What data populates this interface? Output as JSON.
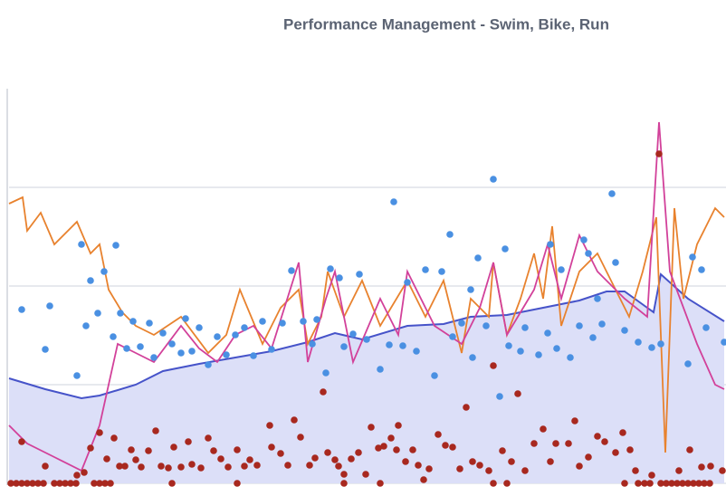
{
  "chart_data": {
    "type": "combo",
    "title": "Performance Management - Swim, Bike, Run",
    "xlim": [
      0,
      792
    ],
    "ylim": [
      0,
      436
    ],
    "yticks": [
      0,
      109,
      218,
      327
    ],
    "grid": true,
    "series": [
      {
        "type": "area",
        "color": "#4653c9",
        "fill": "#dcdff8",
        "x": [
          0,
          40,
          80,
          100,
          140,
          170,
          210,
          250,
          290,
          330,
          360,
          390,
          440,
          480,
          510,
          550,
          590,
          630,
          660,
          680,
          705,
          712,
          720,
          750,
          790
        ],
        "values": [
          116,
          104,
          94,
          97,
          109,
          124,
          132,
          139,
          146,
          156,
          166,
          159,
          174,
          176,
          184,
          186,
          194,
          202,
          212,
          212,
          194,
          189,
          231,
          204,
          179
        ]
      },
      {
        "type": "line",
        "color": "#e8822e",
        "x": [
          0,
          15,
          20,
          35,
          50,
          75,
          90,
          100,
          110,
          125,
          140,
          160,
          190,
          220,
          240,
          255,
          280,
          300,
          320,
          330,
          345,
          352,
          370,
          390,
          410,
          440,
          460,
          480,
          500,
          510,
          530,
          535,
          550,
          565,
          580,
          590,
          600,
          610,
          630,
          650,
          670,
          685,
          700,
          715,
          725,
          735,
          745,
          760,
          770,
          780,
          790
        ],
        "values": [
          309,
          316,
          279,
          299,
          264,
          289,
          254,
          264,
          214,
          189,
          174,
          164,
          184,
          144,
          164,
          214,
          154,
          194,
          214,
          154,
          184,
          234,
          184,
          224,
          174,
          224,
          184,
          224,
          144,
          204,
          184,
          244,
          164,
          204,
          254,
          204,
          284,
          174,
          234,
          254,
          214,
          184,
          234,
          294,
          34,
          304,
          204,
          264,
          284,
          304,
          294
        ]
      },
      {
        "type": "line",
        "color": "#d2419a",
        "x": [
          0,
          20,
          50,
          80,
          100,
          120,
          140,
          160,
          190,
          210,
          230,
          250,
          270,
          290,
          320,
          330,
          350,
          360,
          380,
          410,
          430,
          440,
          470,
          500,
          520,
          535,
          550,
          580,
          595,
          610,
          630,
          650,
          680,
          705,
          718,
          730,
          760,
          780,
          790
        ],
        "values": [
          64,
          44,
          29,
          14,
          64,
          154,
          144,
          134,
          174,
          149,
          134,
          164,
          174,
          149,
          244,
          134,
          204,
          234,
          134,
          204,
          164,
          234,
          174,
          154,
          194,
          244,
          164,
          214,
          264,
          204,
          274,
          234,
          204,
          184,
          399,
          234,
          154,
          109,
          104
        ]
      },
      {
        "type": "scatter",
        "color": "#4a90e2",
        "x": [
          14,
          40,
          45,
          75,
          80,
          85,
          90,
          98,
          105,
          115,
          118,
          123,
          130,
          137,
          145,
          155,
          160,
          170,
          180,
          190,
          195,
          202,
          210,
          220,
          230,
          240,
          250,
          260,
          270,
          280,
          290,
          302,
          312,
          325,
          335,
          340,
          350,
          355,
          365,
          370,
          380,
          387,
          395,
          410,
          420,
          425,
          435,
          440,
          450,
          460,
          470,
          478,
          487,
          490,
          500,
          510,
          512,
          518,
          527,
          535,
          542,
          548,
          552,
          565,
          570,
          585,
          595,
          598,
          605,
          610,
          620,
          630,
          635,
          640,
          645,
          650,
          655,
          666,
          670,
          680,
          695,
          710,
          720,
          750,
          755,
          765,
          770,
          790
        ],
        "values": [
          192,
          148,
          196,
          119,
          264,
          174,
          224,
          188,
          234,
          162,
          263,
          188,
          149,
          179,
          151,
          177,
          139,
          166,
          154,
          144,
          182,
          146,
          172,
          131,
          162,
          142,
          164,
          172,
          141,
          179,
          148,
          177,
          235,
          179,
          154,
          181,
          122,
          237,
          227,
          151,
          165,
          231,
          159,
          126,
          153,
          311,
          152,
          222,
          146,
          236,
          119,
          234,
          275,
          162,
          177,
          214,
          139,
          249,
          174,
          336,
          96,
          259,
          152,
          146,
          172,
          142,
          166,
          264,
          149,
          236,
          139,
          174,
          269,
          254,
          161,
          204,
          176,
          320,
          244,
          169,
          156,
          150,
          154,
          132,
          250,
          236,
          172,
          156
        ]
      },
      {
        "type": "scatter",
        "color": "#a8281f",
        "x": [
          2,
          8,
          14,
          20,
          26,
          32,
          38,
          50,
          56,
          62,
          68,
          74,
          94,
          100,
          106,
          112,
          180,
          252,
          370,
          410,
          535,
          550,
          680,
          695,
          702,
          708,
          720,
          726,
          732,
          738,
          744,
          750,
          756,
          762,
          768,
          774,
          14,
          40,
          75,
          83,
          90,
          100,
          108,
          116,
          122,
          128,
          135,
          140,
          146,
          154,
          162,
          168,
          176,
          182,
          190,
          198,
          202,
          212,
          220,
          226,
          234,
          242,
          252,
          260,
          266,
          274,
          288,
          290,
          300,
          308,
          315,
          322,
          332,
          338,
          347,
          352,
          360,
          364,
          370,
          378,
          386,
          394,
          400,
          408,
          414,
          422,
          428,
          430,
          438,
          446,
          452,
          458,
          464,
          474,
          482,
          490,
          498,
          505,
          512,
          520,
          530,
          535,
          545,
          555,
          562,
          570,
          580,
          590,
          598,
          604,
          618,
          625,
          630,
          640,
          650,
          658,
          670,
          678,
          686,
          692,
          710,
          718,
          740,
          752,
          765,
          775,
          788
        ],
        "values": [
          0,
          0,
          0,
          0,
          0,
          0,
          0,
          0,
          0,
          0,
          0,
          0,
          0,
          0,
          0,
          0,
          0,
          0,
          0,
          0,
          0,
          0,
          0,
          0,
          0,
          0,
          0,
          0,
          0,
          0,
          0,
          0,
          0,
          0,
          0,
          0,
          46,
          19,
          9,
          12,
          39,
          56,
          27,
          50,
          19,
          19,
          37,
          26,
          18,
          36,
          58,
          19,
          17,
          40,
          18,
          46,
          21,
          17,
          50,
          36,
          27,
          18,
          37,
          19,
          26,
          20,
          64,
          40,
          33,
          20,
          70,
          51,
          20,
          28,
          101,
          34,
          26,
          19,
          10,
          27,
          34,
          10,
          62,
          39,
          41,
          50,
          37,
          64,
          24,
          37,
          20,
          4,
          16,
          54,
          42,
          40,
          16,
          84,
          24,
          20,
          14,
          130,
          36,
          24,
          99,
          14,
          44,
          60,
          24,
          44,
          44,
          69,
          19,
          29,
          52,
          46,
          34,
          56,
          37,
          14,
          9,
          364,
          14,
          37,
          18,
          19,
          14
        ]
      }
    ]
  }
}
